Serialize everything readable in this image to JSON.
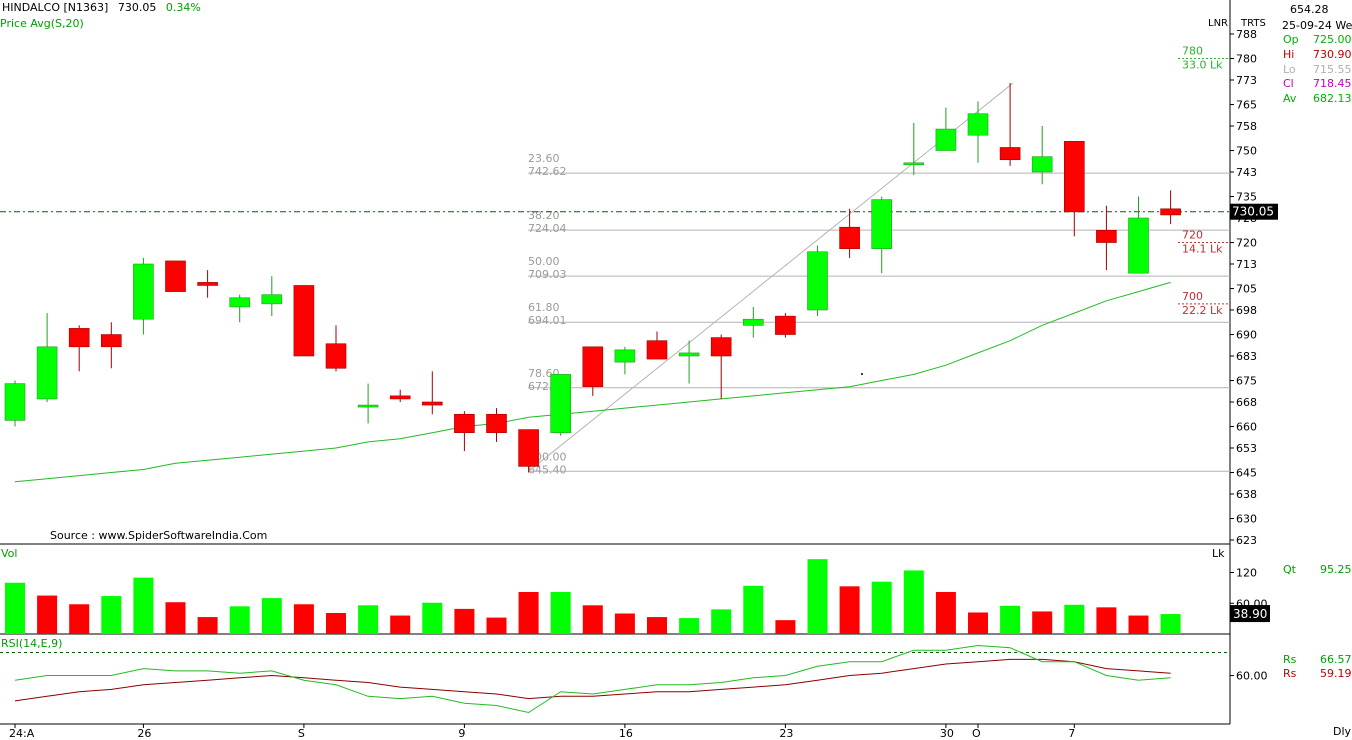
{
  "header": {
    "symbol": "HINDALCO [N1363]",
    "last_price": "730.05",
    "change_pct": "0.34%",
    "indicator": "Price  Avg(S,20)"
  },
  "right_panel": {
    "top_value": "654.28",
    "col_lnr": "LNR",
    "col_trts": "TRTS",
    "date": "25-09-24 We",
    "ohlc": [
      {
        "label": "Op",
        "value": "725.00",
        "color": "#00b000"
      },
      {
        "label": "Hi",
        "value": "730.90",
        "color": "#c00000"
      },
      {
        "label": "Lo",
        "value": "715.55",
        "color": "#b0b0b0"
      },
      {
        "label": "Cl",
        "value": "718.45",
        "color": "#c000c0"
      },
      {
        "label": "Av",
        "value": "682.13",
        "color": "#00b000"
      }
    ],
    "price_ticks": [
      "788",
      "780",
      "773",
      "765",
      "758",
      "750",
      "743",
      "735",
      "728",
      "720",
      "713",
      "705",
      "698",
      "690",
      "683",
      "675",
      "668",
      "660",
      "653",
      "645",
      "638",
      "630",
      "623"
    ],
    "current_price_box": "730.05",
    "volume_unit": "Lk",
    "volume_ticks": [
      "120",
      "60.00"
    ],
    "volume_current_box": "38.90",
    "qt_label": "Qt",
    "qt_value": "95.25",
    "rsi_tick": "60.00",
    "rs1_label": "Rs",
    "rs1_value": "66.57",
    "rs2_label": "Rs",
    "rs2_value": "59.19",
    "timeframe": "Dly"
  },
  "source": "Source : www.SpiderSoftwareIndia.Com",
  "volume_panel_label": "Vol",
  "rsi_panel_label": "RSI(14,E,9)",
  "x_ticks": [
    {
      "label": "24:A",
      "index": 0
    },
    {
      "label": "26",
      "index": 4
    },
    {
      "label": "S",
      "index": 9
    },
    {
      "label": "9",
      "index": 14
    },
    {
      "label": "16",
      "index": 19
    },
    {
      "label": "23",
      "index": 24
    },
    {
      "label": "30",
      "index": 29
    },
    {
      "label": "O",
      "index": 30
    },
    {
      "label": "7",
      "index": 33
    }
  ],
  "fib_levels": [
    {
      "pct": "23.60",
      "price": 742.62,
      "text": "742.62"
    },
    {
      "pct": "38.20",
      "price": 724.04,
      "text": "724.04"
    },
    {
      "pct": "50.00",
      "price": 709.03,
      "text": "709.03"
    },
    {
      "pct": "61.80",
      "price": 694.01,
      "text": "694.01"
    },
    {
      "pct": "78.60",
      "price": 672.63,
      "text": "672.63"
    },
    {
      "pct": "100.00",
      "price": 645.4,
      "text": "645.40"
    }
  ],
  "oi_levels": [
    {
      "strike": "780",
      "oi": "33.0 Lk",
      "color": "#30b030"
    },
    {
      "strike": "720",
      "oi": "14.1 Lk",
      "color": "#c03030"
    },
    {
      "strike": "700",
      "oi": "22.2 Lk",
      "color": "#c03030"
    }
  ],
  "colors": {
    "up": "#00ff00",
    "down": "#ff0000",
    "avg": "#22bb22",
    "rsi": "#22bb22",
    "rsi_signal": "#8b0000"
  },
  "chart_data": {
    "type": "candlestick",
    "title": "HINDALCO [N1363]",
    "ylim": [
      623,
      788
    ],
    "moving_average": "Price Avg(S,20)",
    "candles": [
      {
        "o": 662,
        "h": 675,
        "l": 660,
        "c": 674
      },
      {
        "o": 669,
        "h": 697,
        "l": 668,
        "c": 686
      },
      {
        "o": 692,
        "h": 693,
        "l": 678,
        "c": 686
      },
      {
        "o": 690,
        "h": 694,
        "l": 679,
        "c": 686
      },
      {
        "o": 695,
        "h": 715,
        "l": 690,
        "c": 713
      },
      {
        "o": 714,
        "h": 714,
        "l": 704,
        "c": 704
      },
      {
        "o": 707,
        "h": 711,
        "l": 702,
        "c": 706
      },
      {
        "o": 699,
        "h": 703,
        "l": 694,
        "c": 702
      },
      {
        "o": 700,
        "h": 709,
        "l": 696,
        "c": 703
      },
      {
        "o": 706,
        "h": 706,
        "l": 683,
        "c": 683
      },
      {
        "o": 687,
        "h": 693,
        "l": 678,
        "c": 679
      },
      {
        "o": 667,
        "h": 674,
        "l": 661,
        "c": 667
      },
      {
        "o": 670,
        "h": 672,
        "l": 668,
        "c": 669
      },
      {
        "o": 668,
        "h": 678,
        "l": 664,
        "c": 667
      },
      {
        "o": 664,
        "h": 665,
        "l": 652,
        "c": 658
      },
      {
        "o": 664,
        "h": 666,
        "l": 655,
        "c": 658
      },
      {
        "o": 659,
        "h": 659,
        "l": 645,
        "c": 647
      },
      {
        "o": 658,
        "h": 677,
        "l": 657,
        "c": 677
      },
      {
        "o": 686,
        "h": 686,
        "l": 670,
        "c": 673
      },
      {
        "o": 681,
        "h": 686,
        "l": 677,
        "c": 685
      },
      {
        "o": 688,
        "h": 691,
        "l": 682,
        "c": 682
      },
      {
        "o": 683,
        "h": 688,
        "l": 674,
        "c": 684
      },
      {
        "o": 689,
        "h": 690,
        "l": 669,
        "c": 683
      },
      {
        "o": 693,
        "h": 699,
        "l": 689,
        "c": 695
      },
      {
        "o": 696,
        "h": 697,
        "l": 689,
        "c": 690
      },
      {
        "o": 698,
        "h": 719,
        "l": 696,
        "c": 717
      },
      {
        "o": 725,
        "h": 731,
        "l": 715,
        "c": 718
      },
      {
        "o": 718,
        "h": 735,
        "l": 710,
        "c": 734
      },
      {
        "o": 746,
        "h": 759,
        "l": 742,
        "c": 746
      },
      {
        "o": 750,
        "h": 764,
        "l": 750,
        "c": 757
      },
      {
        "o": 755,
        "h": 766,
        "l": 746,
        "c": 762
      },
      {
        "o": 751,
        "h": 772,
        "l": 745,
        "c": 747
      },
      {
        "o": 743,
        "h": 758,
        "l": 739,
        "c": 748
      },
      {
        "o": 753,
        "h": 753,
        "l": 722,
        "c": 730
      },
      {
        "o": 724,
        "h": 732,
        "l": 711,
        "c": 720
      },
      {
        "o": 710,
        "h": 735,
        "l": 710,
        "c": 728
      },
      {
        "o": 731,
        "h": 737,
        "l": 726,
        "c": 729
      }
    ],
    "sma": [
      642,
      643,
      644,
      645,
      646,
      648,
      649,
      650,
      651,
      652,
      653,
      655,
      656,
      658,
      660,
      661,
      663,
      664,
      665,
      666,
      667,
      668,
      669,
      670,
      671,
      672,
      673,
      675,
      677,
      680,
      684,
      688,
      693,
      697,
      701,
      704,
      707
    ],
    "volume": [
      {
        "v": 100,
        "up": true
      },
      {
        "v": 75,
        "up": false
      },
      {
        "v": 58,
        "up": false
      },
      {
        "v": 74,
        "up": true
      },
      {
        "v": 110,
        "up": true
      },
      {
        "v": 62,
        "up": false
      },
      {
        "v": 33,
        "up": false
      },
      {
        "v": 54,
        "up": true
      },
      {
        "v": 70,
        "up": true
      },
      {
        "v": 58,
        "up": false
      },
      {
        "v": 41,
        "up": false
      },
      {
        "v": 56,
        "up": true
      },
      {
        "v": 36,
        "up": false
      },
      {
        "v": 61,
        "up": true
      },
      {
        "v": 49,
        "up": false
      },
      {
        "v": 32,
        "up": false
      },
      {
        "v": 82,
        "up": false
      },
      {
        "v": 82,
        "up": true
      },
      {
        "v": 56,
        "up": false
      },
      {
        "v": 40,
        "up": false
      },
      {
        "v": 33,
        "up": false
      },
      {
        "v": 31,
        "up": true
      },
      {
        "v": 48,
        "up": true
      },
      {
        "v": 94,
        "up": true
      },
      {
        "v": 27,
        "up": false
      },
      {
        "v": 146,
        "up": true
      },
      {
        "v": 93,
        "up": false
      },
      {
        "v": 102,
        "up": true
      },
      {
        "v": 124,
        "up": true
      },
      {
        "v": 82,
        "up": false
      },
      {
        "v": 42,
        "up": false
      },
      {
        "v": 55,
        "up": true
      },
      {
        "v": 44,
        "up": false
      },
      {
        "v": 57,
        "up": true
      },
      {
        "v": 52,
        "up": false
      },
      {
        "v": 36,
        "up": false
      },
      {
        "v": 38.9,
        "up": true
      }
    ],
    "volume_ylim": [
      0,
      160
    ],
    "rsi": [
      58,
      60,
      60,
      60,
      63,
      62,
      62,
      61,
      62,
      58,
      56,
      51,
      50,
      51,
      48,
      47,
      44,
      53,
      52,
      54,
      56,
      56,
      57,
      59,
      60,
      64,
      66,
      66,
      71,
      71,
      73,
      72,
      66,
      66,
      60,
      58,
      59
    ],
    "rsi_signal": [
      49,
      51,
      53,
      54,
      56,
      57,
      58,
      59,
      60,
      59,
      58,
      57,
      55,
      54,
      53,
      52,
      50,
      51,
      51,
      52,
      53,
      53,
      54,
      55,
      56,
      58,
      60,
      61,
      63,
      65,
      66,
      67,
      67,
      66,
      63,
      62,
      61
    ],
    "rsi_ylim": [
      39,
      78
    ],
    "rsi_hline": 70
  }
}
